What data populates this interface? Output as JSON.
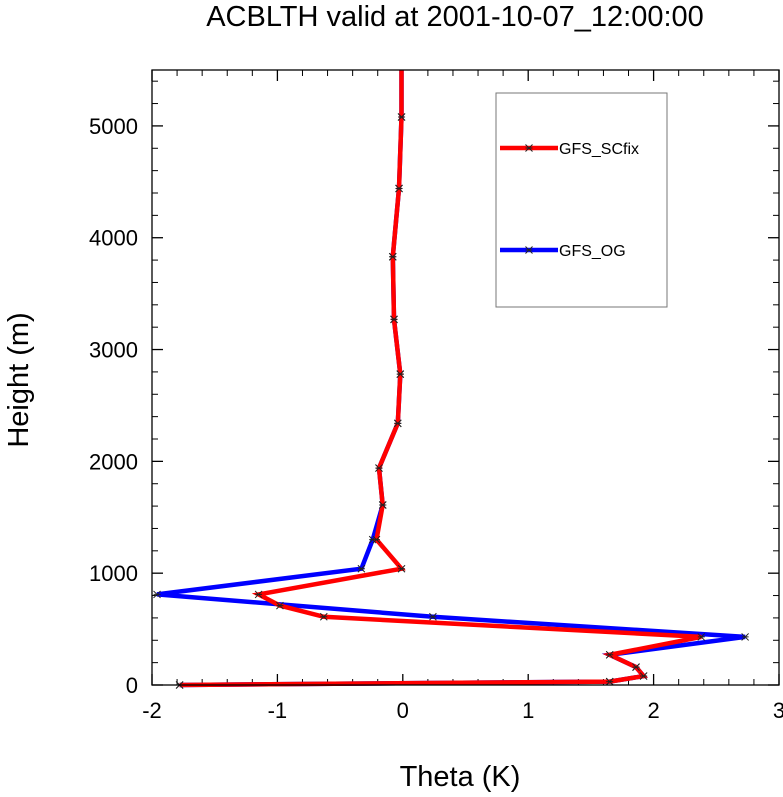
{
  "chart_data": {
    "type": "line",
    "title": "ACBLTH valid at 2001-10-07_12:00:00",
    "xlabel": "Theta (K)",
    "ylabel": "Height (m)",
    "xlim": [
      -2,
      3
    ],
    "ylim": [
      0,
      5500
    ],
    "x_ticks": [
      -2,
      -1,
      0,
      1,
      2,
      3
    ],
    "x_tick_labels": [
      "-2",
      "-1",
      "0",
      "1",
      "2",
      "3"
    ],
    "y_ticks": [
      0,
      1000,
      2000,
      3000,
      4000,
      5000
    ],
    "y_tick_labels": [
      "0",
      "1000",
      "2000",
      "3000",
      "4000",
      "5000"
    ],
    "grid": false,
    "legend_position": "top-right",
    "series": [
      {
        "name": "GFS_OG",
        "color": "#0000ff",
        "points": [
          [
            -1.78,
            0
          ],
          [
            1.65,
            30
          ],
          [
            1.92,
            80
          ],
          [
            1.86,
            160
          ],
          [
            1.65,
            270
          ],
          [
            2.73,
            430
          ],
          [
            0.24,
            610
          ],
          [
            -1.96,
            810
          ],
          [
            -0.33,
            1040
          ],
          [
            -0.24,
            1300
          ],
          [
            -0.16,
            1610
          ],
          [
            -0.19,
            1940
          ],
          [
            -0.04,
            2340
          ],
          [
            -0.02,
            2780
          ],
          [
            -0.07,
            3270
          ],
          [
            -0.08,
            3830
          ],
          [
            -0.03,
            4440
          ],
          [
            -0.01,
            5080
          ],
          [
            -0.01,
            5500
          ]
        ]
      },
      {
        "name": "GFS_SCfix",
        "color": "#ff0000",
        "points": [
          [
            -1.78,
            0
          ],
          [
            1.65,
            30
          ],
          [
            1.92,
            80
          ],
          [
            1.86,
            160
          ],
          [
            1.65,
            270
          ],
          [
            2.38,
            430
          ],
          [
            -0.63,
            610
          ],
          [
            -0.98,
            710
          ],
          [
            -1.15,
            810
          ],
          [
            -0.01,
            1040
          ],
          [
            -0.21,
            1300
          ],
          [
            -0.16,
            1610
          ],
          [
            -0.19,
            1940
          ],
          [
            -0.04,
            2340
          ],
          [
            -0.02,
            2780
          ],
          [
            -0.07,
            3270
          ],
          [
            -0.08,
            3830
          ],
          [
            -0.03,
            4440
          ],
          [
            -0.01,
            5080
          ],
          [
            -0.01,
            5500
          ]
        ]
      }
    ]
  }
}
